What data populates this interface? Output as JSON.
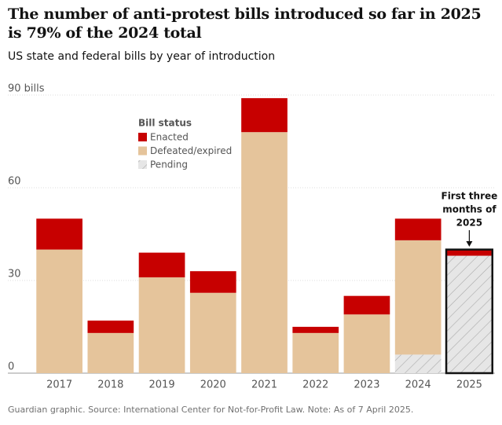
{
  "chart_data": {
    "type": "stacked-bar",
    "title": "The number of anti-protest bills introduced so far in 2025 is 79% of the 2024 total",
    "subtitle": "US state and federal bills by year of introduction",
    "categories": [
      "2017",
      "2018",
      "2019",
      "2020",
      "2021",
      "2022",
      "2023",
      "2024",
      "2025"
    ],
    "series": [
      {
        "name": "Pending",
        "color": "#dcdcdc",
        "values": [
          null,
          null,
          null,
          null,
          null,
          null,
          null,
          6,
          38
        ]
      },
      {
        "name": "Defeated/expired",
        "color": "#e5c49b",
        "values": [
          40,
          13,
          31,
          26,
          78,
          13,
          19,
          37,
          null
        ]
      },
      {
        "name": "Enacted",
        "color": "#c70000",
        "values": [
          10,
          4,
          8,
          7,
          11,
          2,
          6,
          7,
          2
        ]
      }
    ],
    "legend_title": "Bill status",
    "annotation": [
      "First three",
      "months of",
      "2025"
    ],
    "ylim": [
      0,
      90
    ],
    "yticks": [
      0,
      30,
      60,
      {
        "value": 90,
        "label": "90 bills"
      }
    ],
    "grid": true,
    "source": "Guardian graphic. Source: International Center for Not-for-Profit Law. Note: As of 7 April 2025."
  }
}
